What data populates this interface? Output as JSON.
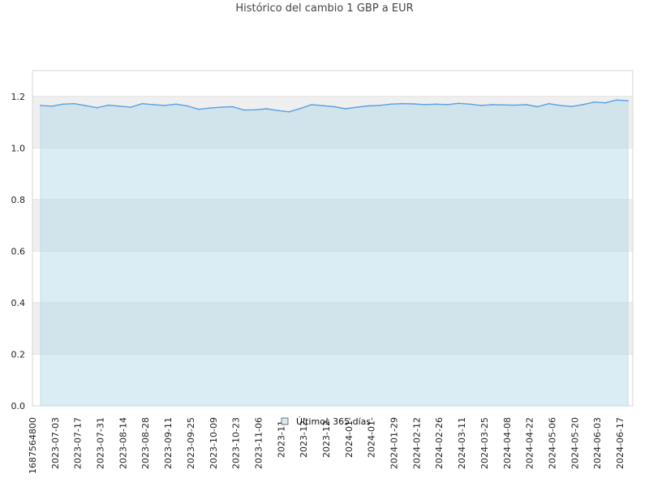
{
  "chart_data": {
    "type": "area",
    "title": "Histórico del cambio 1 GBP a EUR",
    "xlabel": "",
    "ylabel": "",
    "ylim": [
      0,
      1.3
    ],
    "y_ticks": [
      "0.0",
      "0.2",
      "0.4",
      "0.6",
      "0.8",
      "1.0",
      "1.2"
    ],
    "x_tick_labels": [
      "1687564800",
      "2023-07-03",
      "2023-07-17",
      "2023-07-31",
      "2023-08-14",
      "2023-08-28",
      "2023-09-11",
      "2023-09-25",
      "2023-10-09",
      "2023-10-23",
      "2023-11-06",
      "2023-11-",
      "2023-12-",
      "2023-12-",
      "2024-01-",
      "2024-01-",
      "2024-01-29",
      "2024-02-12",
      "2024-02-26",
      "2024-03-11",
      "2024-03-25",
      "2024-04-08",
      "2024-04-22",
      "2024-05-06",
      "2024-05-20",
      "2024-06-03",
      "2024-06-17"
    ],
    "grid": true,
    "legend": "bottom-center",
    "colors": {
      "line": "#5aa0e6",
      "fill": "#add8e6",
      "grid_band": "#efefef"
    },
    "series": [
      {
        "name": "Últimos 365 días",
        "x": [
          "2023-06-24",
          "2023-07-01",
          "2023-07-08",
          "2023-07-15",
          "2023-07-22",
          "2023-07-29",
          "2023-08-05",
          "2023-08-12",
          "2023-08-19",
          "2023-08-26",
          "2023-09-02",
          "2023-09-09",
          "2023-09-16",
          "2023-09-23",
          "2023-09-30",
          "2023-10-07",
          "2023-10-14",
          "2023-10-21",
          "2023-10-28",
          "2023-11-04",
          "2023-11-11",
          "2023-11-18",
          "2023-11-25",
          "2023-12-02",
          "2023-12-09",
          "2023-12-16",
          "2023-12-23",
          "2023-12-30",
          "2024-01-06",
          "2024-01-13",
          "2024-01-20",
          "2024-01-27",
          "2024-02-03",
          "2024-02-10",
          "2024-02-17",
          "2024-02-24",
          "2024-03-02",
          "2024-03-09",
          "2024-03-16",
          "2024-03-23",
          "2024-03-30",
          "2024-04-06",
          "2024-04-13",
          "2024-04-20",
          "2024-04-27",
          "2024-05-04",
          "2024-05-11",
          "2024-05-18",
          "2024-05-25",
          "2024-06-01",
          "2024-06-08",
          "2024-06-15",
          "2024-06-22"
        ],
        "values": [
          1.165,
          1.162,
          1.17,
          1.172,
          1.164,
          1.156,
          1.166,
          1.162,
          1.158,
          1.172,
          1.168,
          1.165,
          1.17,
          1.163,
          1.15,
          1.155,
          1.158,
          1.16,
          1.147,
          1.148,
          1.152,
          1.145,
          1.14,
          1.153,
          1.168,
          1.164,
          1.16,
          1.152,
          1.158,
          1.163,
          1.165,
          1.17,
          1.172,
          1.171,
          1.168,
          1.17,
          1.168,
          1.173,
          1.17,
          1.165,
          1.168,
          1.167,
          1.166,
          1.168,
          1.16,
          1.172,
          1.165,
          1.161,
          1.168,
          1.178,
          1.175,
          1.186,
          1.183
        ]
      }
    ]
  }
}
